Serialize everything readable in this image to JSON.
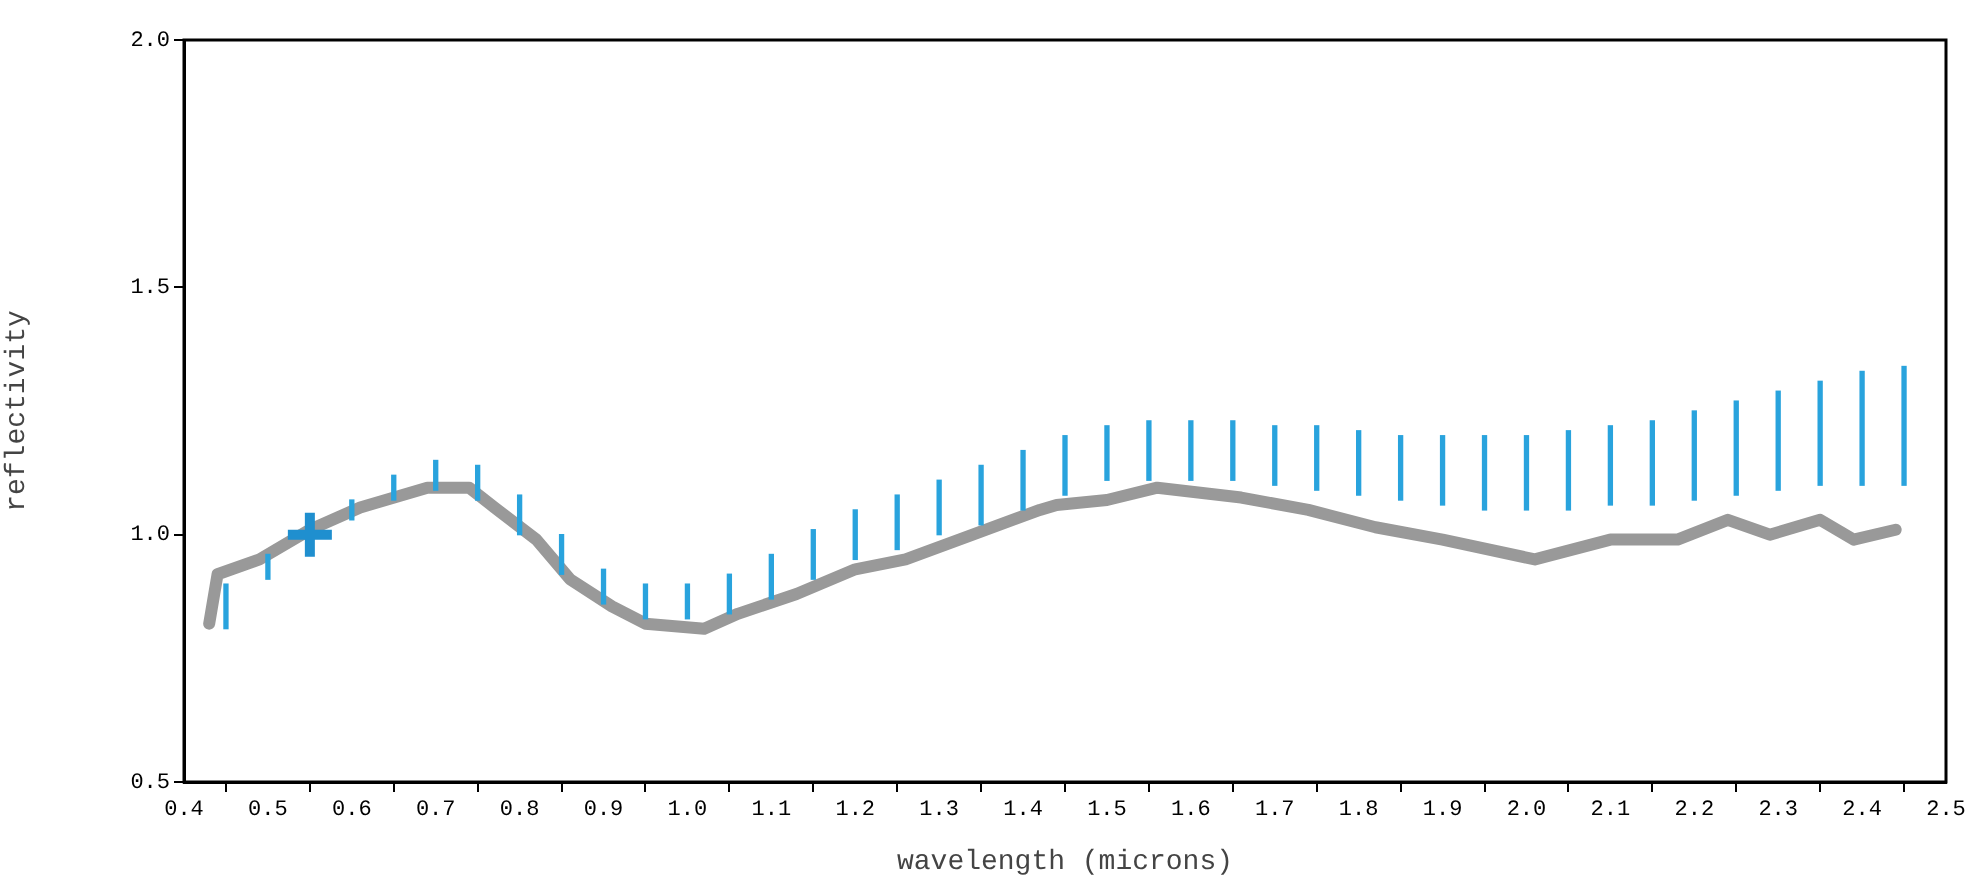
{
  "chart_data": {
    "type": "line",
    "xlabel": "wavelength (microns)",
    "ylabel": "reflectivity",
    "xlim": [
      0.4,
      2.5
    ],
    "xticks": [
      0.4,
      0.5,
      0.6,
      0.7,
      0.8,
      0.9,
      {
        "value": 1,
        "label": "1.0"
      },
      1.1,
      1.2,
      1.3,
      1.4,
      1.5,
      1.6,
      1.7,
      1.8,
      1.9,
      {
        "value": 2,
        "label": "2.0"
      },
      2.1,
      2.2,
      2.3,
      2.4,
      2.5
    ],
    "ylim": [
      0.5,
      2.0
    ],
    "yticks": [
      0.5,
      {
        "value": 1,
        "label": "1.0"
      },
      1.5,
      {
        "value": 2,
        "label": "2.0"
      }
    ],
    "grid": false,
    "legend": false,
    "series": [
      {
        "color": "#999999",
        "marker": "none",
        "x": [
          0.43,
          0.44,
          0.49,
          0.55,
          0.61,
          0.69,
          0.74,
          0.77,
          0.82,
          0.86,
          0.91,
          0.95,
          1.02,
          1.06,
          1.13,
          1.2,
          1.26,
          1.34,
          1.42,
          1.44,
          1.5,
          1.56,
          1.66,
          1.74,
          1.82,
          1.9,
          2.01,
          2.1,
          2.18,
          2.24,
          2.29,
          2.35,
          2.39,
          2.44
        ],
        "values": [
          0.82,
          0.92,
          0.95,
          1.01,
          1.055,
          1.095,
          1.095,
          1.055,
          0.99,
          0.91,
          0.855,
          0.82,
          0.81,
          0.84,
          0.88,
          0.93,
          0.95,
          1.0,
          1.05,
          1.06,
          1.07,
          1.095,
          1.075,
          1.05,
          1.015,
          0.99,
          0.95,
          0.99,
          0.99,
          1.03,
          1.0,
          1.03,
          0.99,
          1.01
        ]
      },
      {
        "type": "bar",
        "color": "#29a3dd",
        "x": [
          0.45,
          0.5,
          0.55,
          0.6,
          0.65,
          0.7,
          0.75,
          0.8,
          0.85,
          0.9,
          0.95,
          1.0,
          1.05,
          1.1,
          1.15,
          1.2,
          1.25,
          1.3,
          1.35,
          1.4,
          1.45,
          1.5,
          1.55,
          1.6,
          1.65,
          1.7,
          1.75,
          1.8,
          1.85,
          1.9,
          1.95,
          2.0,
          2.05,
          2.1,
          2.15,
          2.2,
          2.25,
          2.3,
          2.35,
          2.4,
          2.45
        ],
        "base": [
          0.81,
          0.91,
          null,
          1.03,
          1.07,
          1.09,
          1.07,
          1.0,
          0.92,
          0.86,
          0.83,
          0.83,
          0.84,
          0.87,
          0.91,
          0.95,
          0.97,
          1.0,
          1.02,
          1.05,
          1.08,
          1.11,
          1.11,
          1.11,
          1.11,
          1.1,
          1.09,
          1.08,
          1.07,
          1.06,
          1.05,
          1.05,
          1.05,
          1.06,
          1.06,
          1.07,
          1.08,
          1.09,
          1.1,
          1.1,
          1.1
        ],
        "values": [
          0.09,
          0.05,
          null,
          0.04,
          0.05,
          0.06,
          0.07,
          0.08,
          0.08,
          0.07,
          0.07,
          0.07,
          0.08,
          0.09,
          0.1,
          0.1,
          0.11,
          0.11,
          0.12,
          0.12,
          0.12,
          0.11,
          0.12,
          0.12,
          0.12,
          0.12,
          0.13,
          0.13,
          0.13,
          0.14,
          0.15,
          0.15,
          0.16,
          0.16,
          0.17,
          0.18,
          0.19,
          0.2,
          0.21,
          0.23,
          0.24
        ]
      },
      {
        "type": "scatter",
        "color": "#1f8fcf",
        "marker": "cross",
        "x": [
          0.55
        ],
        "values": [
          1.0
        ]
      }
    ]
  }
}
